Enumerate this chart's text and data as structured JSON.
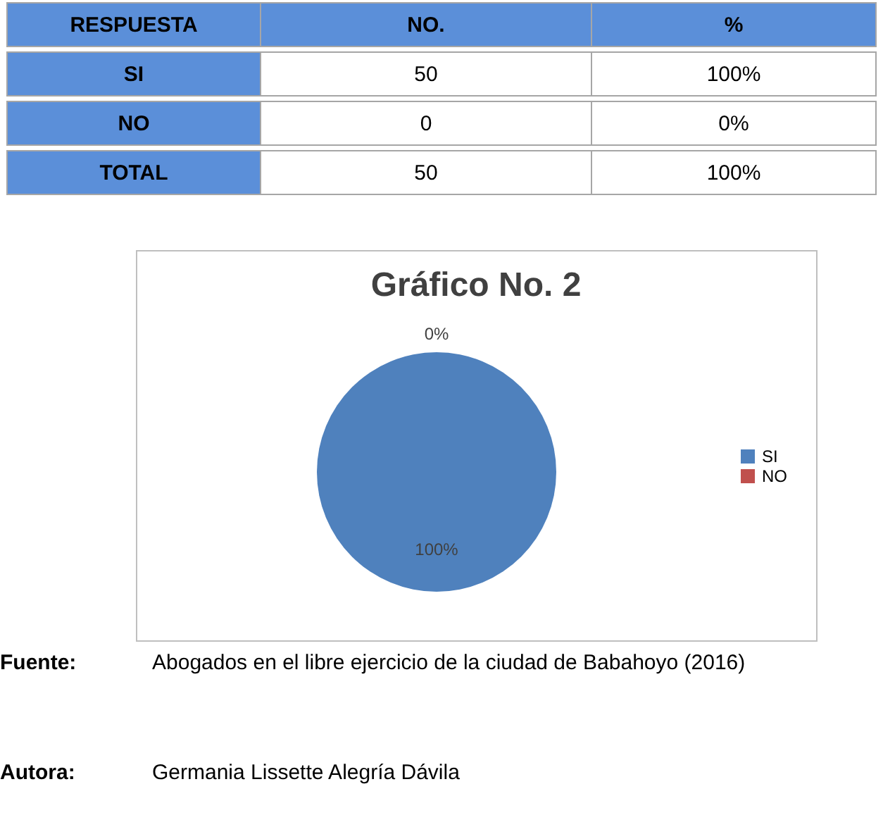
{
  "chart_data": {
    "type": "pie",
    "title": "Gráfico No. 2",
    "categories": [
      "SI",
      "NO"
    ],
    "values": [
      100,
      0
    ],
    "colors": [
      "#4f81bd",
      "#c0504d"
    ],
    "value_labels": [
      "100%",
      "0%"
    ],
    "legend": "right",
    "annotations": [
      "RESPUESTA",
      "NO.",
      "%",
      "SI",
      "50",
      "100%",
      "NO",
      "0",
      "0%",
      "TOTAL",
      "50",
      "100%",
      "Fuente:",
      "Abogados en el libre ejercicio de la ciudad de Babahoyo (2016)",
      "Autora:",
      "Germania Lissette Alegría Dávila"
    ]
  }
}
